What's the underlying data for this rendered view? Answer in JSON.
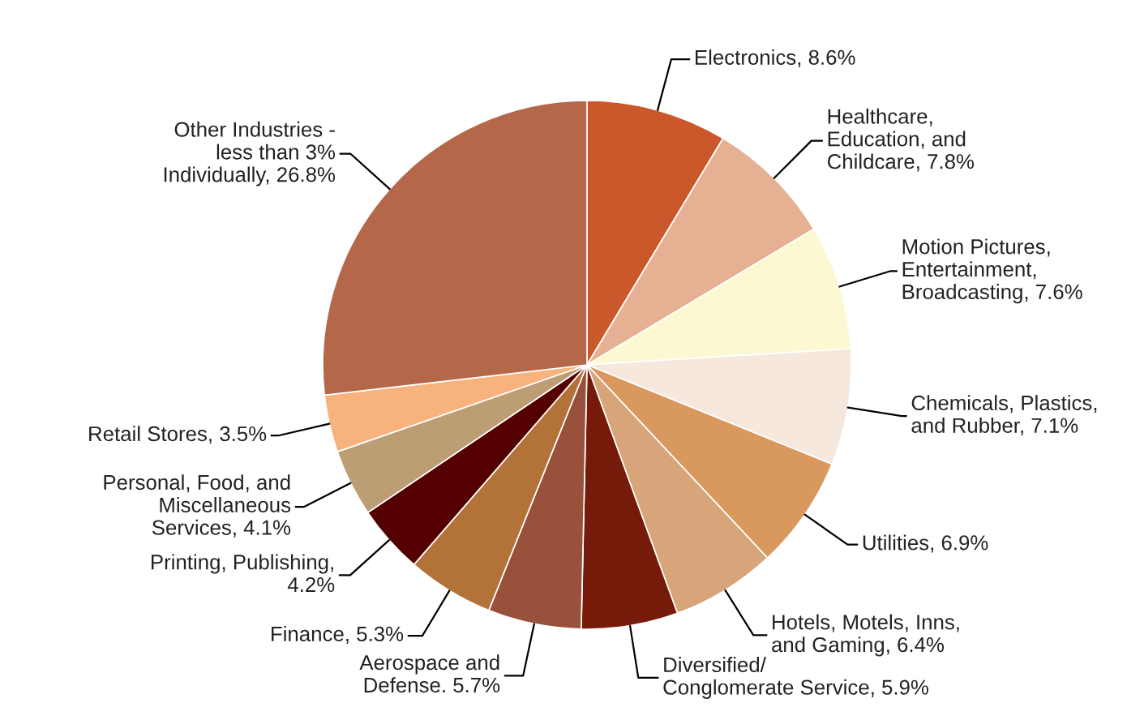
{
  "chart_data": {
    "type": "pie",
    "categories": [
      "Electronics, 8.6%",
      "Healthcare,\nEducation, and\nChildcare, 7.8%",
      "Motion Pictures,\nEntertainment,\nBroadcasting, 7.6%",
      "Chemicals, Plastics,\nand Rubber, 7.1%",
      "Utilities, 6.9%",
      "Hotels, Motels, Inns,\nand Gaming, 6.4%",
      "Diversified/\nConglomerate Service, 5.9%",
      "Aerospace and\nDefense. 5.7%",
      "Finance, 5.3%",
      "Printing, Publishing,\n4.2%",
      "Personal, Food, and\nMiscellaneous\nServices, 4.1%",
      "Retail Stores, 3.5%",
      "Other Industries -\nless than 3%\nIndividually, 26.8%"
    ],
    "values": [
      8.6,
      7.8,
      7.6,
      7.1,
      6.9,
      6.4,
      5.9,
      5.7,
      5.3,
      4.2,
      4.1,
      3.5,
      26.8
    ],
    "colors": [
      "#cb582b",
      "#e5b192",
      "#fbf8d2",
      "#f7e8de",
      "#d9995e",
      "#d8a57a",
      "#761b0a",
      "#9a513c",
      "#b37237",
      "#540000",
      "#bd9d74",
      "#f8b27e",
      "#b5674a"
    ]
  }
}
